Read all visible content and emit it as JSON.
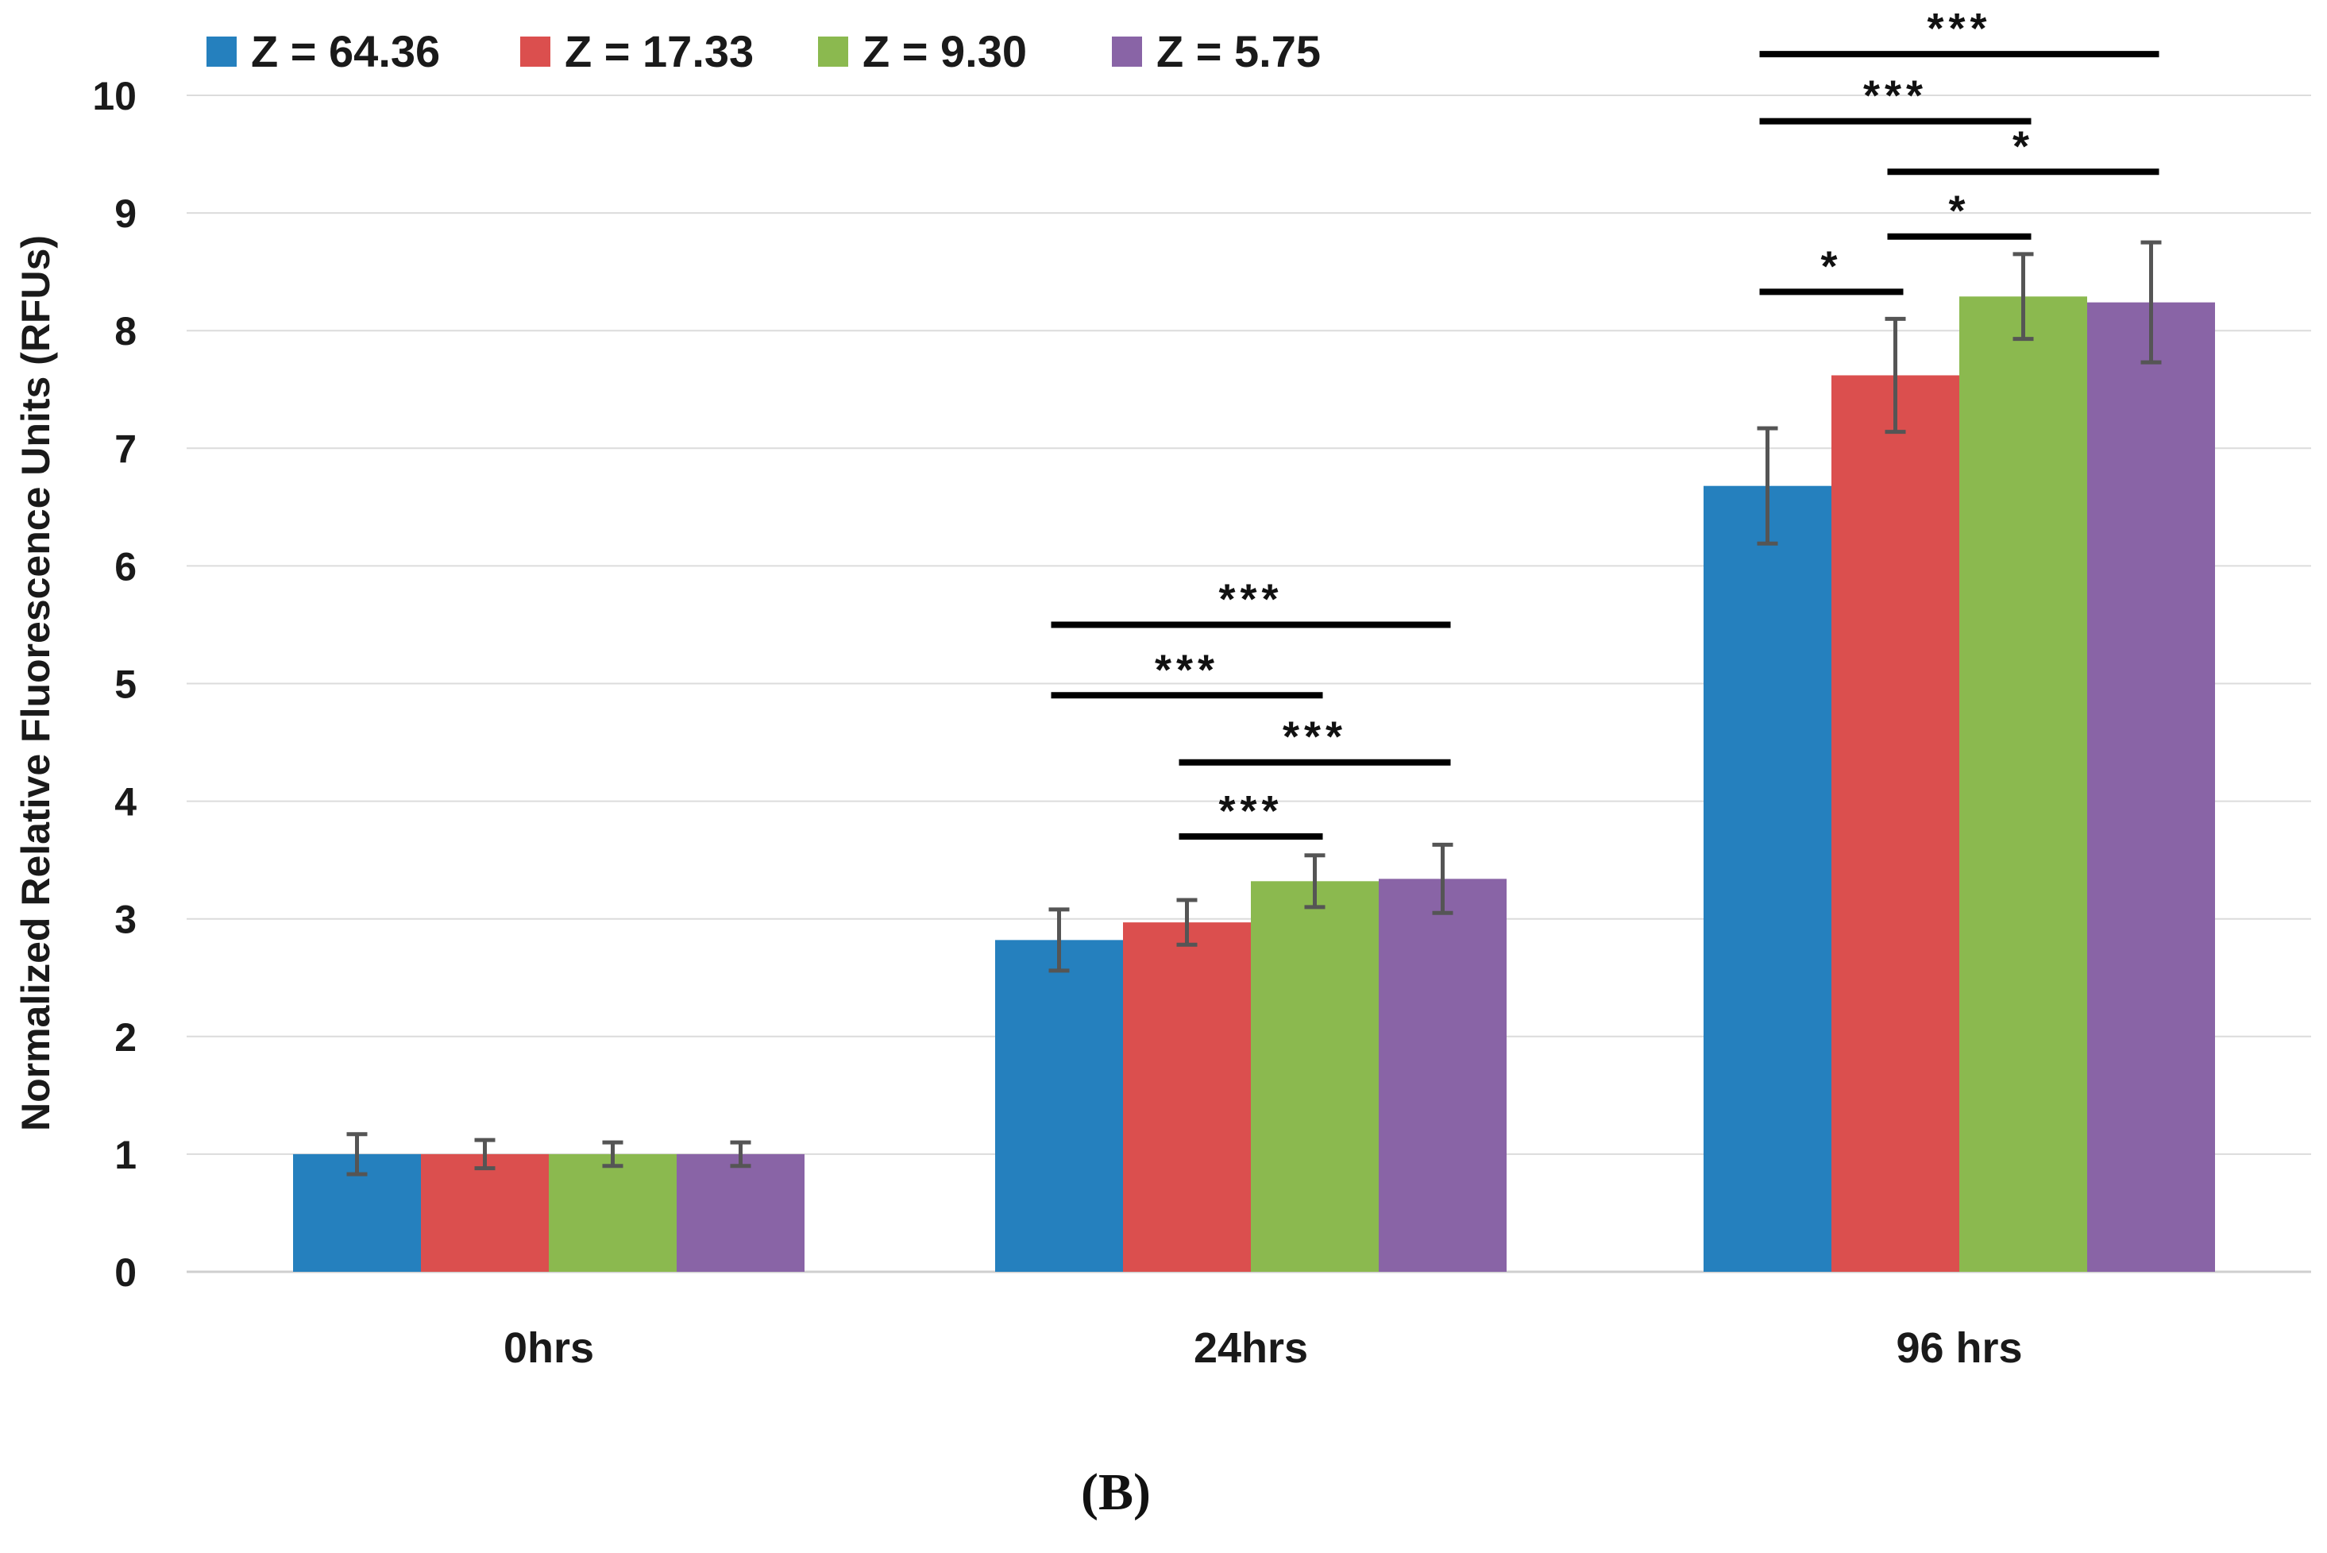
{
  "chart_data": {
    "type": "bar",
    "title": "",
    "xlabel": "",
    "ylabel": "Normalized Relative Fluorescence Units (RFUs)",
    "ylim": [
      0,
      10
    ],
    "yticks": [
      0,
      1,
      2,
      3,
      4,
      5,
      6,
      7,
      8,
      9,
      10
    ],
    "grid": true,
    "legend_position": "top-left",
    "categories": [
      "0hrs",
      "24hrs",
      "96 hrs"
    ],
    "series": [
      {
        "name": "Z = 64.36",
        "color": "#2580BE",
        "values": [
          1.0,
          2.82,
          6.68
        ],
        "errors": [
          0.17,
          0.26,
          0.49
        ]
      },
      {
        "name": "Z = 17.33",
        "color": "#DB4F4E",
        "values": [
          1.0,
          2.97,
          7.62
        ],
        "errors": [
          0.12,
          0.19,
          0.48
        ]
      },
      {
        "name": "Z = 9.30",
        "color": "#8BB94F",
        "values": [
          1.0,
          3.32,
          8.29
        ],
        "errors": [
          0.1,
          0.22,
          0.36
        ]
      },
      {
        "name": "Z = 5.75",
        "color": "#8964A6",
        "values": [
          1.0,
          3.34,
          8.24
        ],
        "errors": [
          0.1,
          0.29,
          0.51
        ]
      }
    ],
    "significance": [
      {
        "category": 1,
        "from": 1,
        "to": 2,
        "y": 3.7,
        "label": "***"
      },
      {
        "category": 1,
        "from": 1,
        "to": 3,
        "y": 4.33,
        "label": "***"
      },
      {
        "category": 1,
        "from": 0,
        "to": 2,
        "y": 4.9,
        "label": "***"
      },
      {
        "category": 1,
        "from": 0,
        "to": 3,
        "y": 5.5,
        "label": "***"
      },
      {
        "category": 2,
        "from": 0,
        "to": 1,
        "y": 8.33,
        "label": "*"
      },
      {
        "category": 2,
        "from": 1,
        "to": 2,
        "y": 8.8,
        "label": "*"
      },
      {
        "category": 2,
        "from": 1,
        "to": 3,
        "y": 9.35,
        "label": "*"
      },
      {
        "category": 2,
        "from": 0,
        "to": 2,
        "y": 9.78,
        "label": "***"
      },
      {
        "category": 2,
        "from": 0,
        "to": 3,
        "y": 10.35,
        "label": "***"
      }
    ]
  },
  "panel_label": "(B)"
}
